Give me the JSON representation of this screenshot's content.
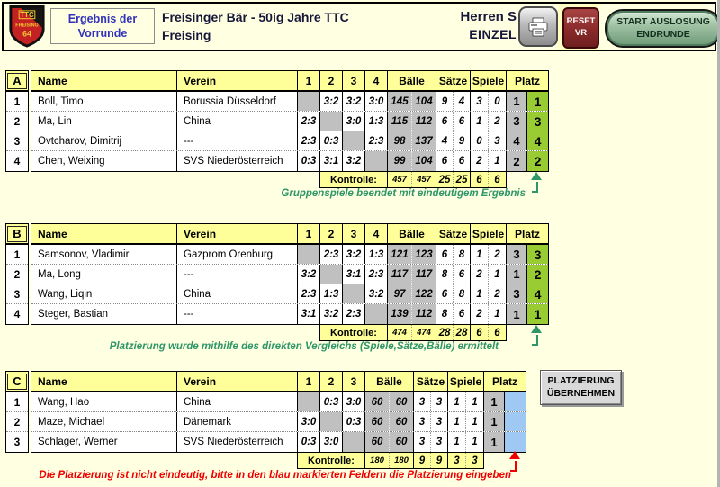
{
  "header": {
    "logo": {
      "line1": "TTC",
      "line2": "FREISING",
      "line3": "64"
    },
    "phase_line1": "Ergebnis der",
    "phase_line2": "Vorrunde",
    "title_line1": "Freisinger Bär - 50ig Jahre TTC",
    "title_line2": "Freising",
    "event_line1": "Herren S",
    "event_line2": "EINZEL",
    "reset_line1": "RESET",
    "reset_line2": "VR",
    "start_line1": "START AUSLOSUNG",
    "start_line2": "ENDRUNDE"
  },
  "table_headers": {
    "name": "Name",
    "verein": "Verein",
    "baelle": "Bälle",
    "saetze": "Sätze",
    "spiele": "Spiele",
    "platz": "Platz",
    "kontrolle_label": "Kontrolle:"
  },
  "groups": [
    {
      "letter": "A",
      "rounds": [
        "1",
        "2",
        "3",
        "4"
      ],
      "players": [
        {
          "nr": "1",
          "name": "Boll, Timo",
          "verein": "Borussia Düsseldorf",
          "self": 0,
          "results": [
            "",
            "3:2",
            "3:2",
            "3:0"
          ],
          "baelle": [
            "145",
            "104"
          ],
          "saetze": [
            "9",
            "4"
          ],
          "spiele": [
            "3",
            "0"
          ],
          "platz_vorlauf": "1",
          "platz": "1"
        },
        {
          "nr": "2",
          "name": "Ma, Lin",
          "verein": "China",
          "self": 1,
          "results": [
            "2:3",
            "",
            "3:0",
            "1:3"
          ],
          "baelle": [
            "115",
            "112"
          ],
          "saetze": [
            "6",
            "6"
          ],
          "spiele": [
            "1",
            "2"
          ],
          "platz_vorlauf": "3",
          "platz": "3"
        },
        {
          "nr": "3",
          "name": "Ovtcharov, Dimitrij",
          "verein": "---",
          "self": 2,
          "results": [
            "2:3",
            "0:3",
            "",
            "2:3"
          ],
          "baelle": [
            "98",
            "137"
          ],
          "saetze": [
            "4",
            "9"
          ],
          "spiele": [
            "0",
            "3"
          ],
          "platz_vorlauf": "4",
          "platz": "4"
        },
        {
          "nr": "4",
          "name": "Chen, Weixing",
          "verein": "SVS Niederösterreich",
          "self": 3,
          "results": [
            "0:3",
            "3:1",
            "3:2",
            ""
          ],
          "baelle": [
            "99",
            "104"
          ],
          "saetze": [
            "6",
            "6"
          ],
          "spiele": [
            "2",
            "1"
          ],
          "platz_vorlauf": "2",
          "platz": "2"
        }
      ],
      "kontrolle": {
        "baelle": [
          "457",
          "457"
        ],
        "saetze": [
          "25",
          "25"
        ],
        "spiele": [
          "6",
          "6"
        ]
      },
      "message": "Gruppenspiele beendet mit eindeutigem Ergebnis",
      "status": "ok"
    },
    {
      "letter": "B",
      "rounds": [
        "1",
        "2",
        "3",
        "4"
      ],
      "players": [
        {
          "nr": "1",
          "name": "Samsonov, Vladimir",
          "verein": "Gazprom Orenburg",
          "self": 0,
          "results": [
            "",
            "2:3",
            "3:2",
            "1:3"
          ],
          "baelle": [
            "121",
            "123"
          ],
          "saetze": [
            "6",
            "8"
          ],
          "spiele": [
            "1",
            "2"
          ],
          "platz_vorlauf": "3",
          "platz": "3"
        },
        {
          "nr": "2",
          "name": "Ma, Long",
          "verein": "---",
          "self": 1,
          "results": [
            "3:2",
            "",
            "3:1",
            "2:3"
          ],
          "baelle": [
            "117",
            "117"
          ],
          "saetze": [
            "8",
            "6"
          ],
          "spiele": [
            "2",
            "1"
          ],
          "platz_vorlauf": "1",
          "platz": "2"
        },
        {
          "nr": "3",
          "name": "Wang, Liqin",
          "verein": "China",
          "self": 2,
          "results": [
            "2:3",
            "1:3",
            "",
            "3:2"
          ],
          "baelle": [
            "97",
            "122"
          ],
          "saetze": [
            "6",
            "8"
          ],
          "spiele": [
            "1",
            "2"
          ],
          "platz_vorlauf": "3",
          "platz": "4"
        },
        {
          "nr": "4",
          "name": "Steger, Bastian",
          "verein": "---",
          "self": 3,
          "results": [
            "3:1",
            "3:2",
            "2:3",
            ""
          ],
          "baelle": [
            "139",
            "112"
          ],
          "saetze": [
            "8",
            "6"
          ],
          "spiele": [
            "2",
            "1"
          ],
          "platz_vorlauf": "1",
          "platz": "1"
        }
      ],
      "kontrolle": {
        "baelle": [
          "474",
          "474"
        ],
        "saetze": [
          "28",
          "28"
        ],
        "spiele": [
          "6",
          "6"
        ]
      },
      "message": "Platzierung wurde mithilfe des direkten Vergleichs (Spiele,Sätze,Bälle) ermittelt",
      "status": "ok"
    },
    {
      "letter": "C",
      "rounds": [
        "1",
        "2",
        "3"
      ],
      "players": [
        {
          "nr": "1",
          "name": "Wang, Hao",
          "verein": "China",
          "self": 0,
          "results": [
            "",
            "0:3",
            "3:0"
          ],
          "baelle": [
            "60",
            "60"
          ],
          "saetze": [
            "3",
            "3"
          ],
          "spiele": [
            "1",
            "1"
          ],
          "platz_vorlauf": "1",
          "platz": ""
        },
        {
          "nr": "2",
          "name": "Maze, Michael",
          "verein": "Dänemark",
          "self": 1,
          "results": [
            "3:0",
            "",
            "0:3"
          ],
          "baelle": [
            "60",
            "60"
          ],
          "saetze": [
            "3",
            "3"
          ],
          "spiele": [
            "1",
            "1"
          ],
          "platz_vorlauf": "1",
          "platz": ""
        },
        {
          "nr": "3",
          "name": "Schlager, Werner",
          "verein": "SVS Niederösterreich",
          "self": 2,
          "results": [
            "0:3",
            "3:0",
            ""
          ],
          "baelle": [
            "60",
            "60"
          ],
          "saetze": [
            "3",
            "3"
          ],
          "spiele": [
            "1",
            "1"
          ],
          "platz_vorlauf": "1",
          "platz": ""
        }
      ],
      "kontrolle": {
        "baelle": [
          "180",
          "180"
        ],
        "saetze": [
          "9",
          "9"
        ],
        "spiele": [
          "3",
          "3"
        ]
      },
      "message": "Die Platzierung ist nicht eindeutig, bitte in den blau markierten Feldern die Platzierung eingeben",
      "status": "conflict"
    }
  ],
  "actions": {
    "platzierung_line1": "PLATZIERUNG",
    "platzierung_line2": "ÜBERNEHMEN"
  },
  "colors": {
    "page_bg": "#FFFFE1",
    "header_cell": "#FFFF99",
    "self_cell": "#C0C0C0",
    "platz_final": "#99CC33",
    "platz_input": "#9FC9F2",
    "ok_message": "#2E9668",
    "error_message": "#EE0000",
    "phase_text": "#3333BB",
    "reset_button": "#8A2A2A",
    "start_button": "#6D9A78"
  }
}
